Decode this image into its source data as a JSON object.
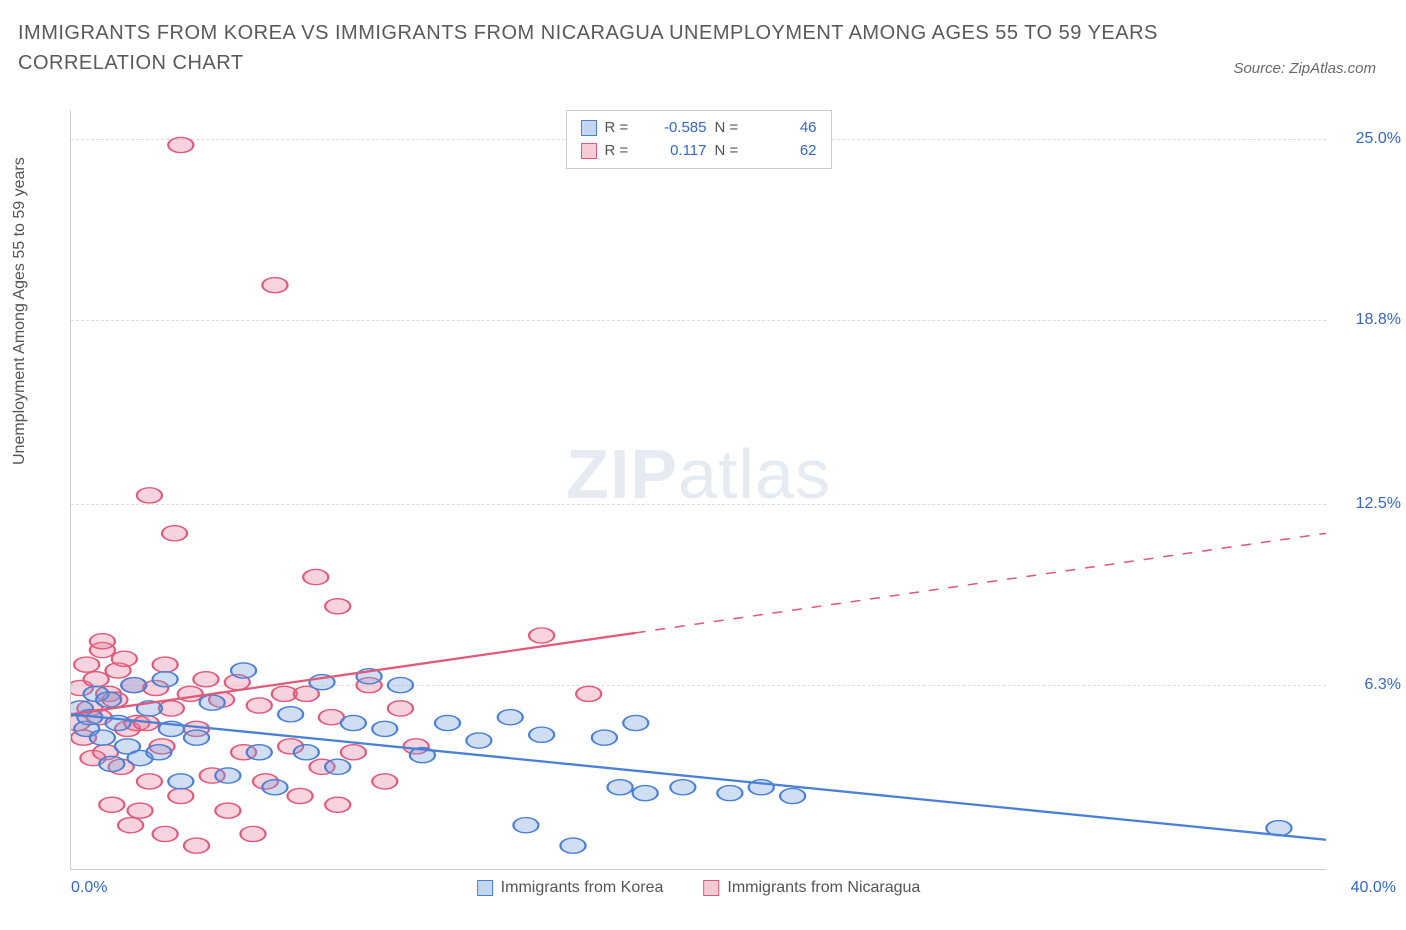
{
  "title": "IMMIGRANTS FROM KOREA VS IMMIGRANTS FROM NICARAGUA UNEMPLOYMENT AMONG AGES 55 TO 59 YEARS CORRELATION CHART",
  "source": "Source: ZipAtlas.com",
  "watermark_bold": "ZIP",
  "watermark_light": "atlas",
  "ylabel": "Unemployment Among Ages 55 to 59 years",
  "xlim": [
    0,
    40
  ],
  "ylim": [
    0,
    26
  ],
  "xtick_left": "0.0%",
  "xtick_right": "40.0%",
  "yticks": [
    {
      "v": 6.3,
      "label": "6.3%"
    },
    {
      "v": 12.5,
      "label": "12.5%"
    },
    {
      "v": 18.8,
      "label": "18.8%"
    },
    {
      "v": 25.0,
      "label": "25.0%"
    }
  ],
  "grid_color": "#dddddd",
  "series": {
    "korea": {
      "label": "Immigrants from Korea",
      "color_stroke": "#4a80d6",
      "color_fill": "rgba(120,160,220,0.35)",
      "swatch_fill": "#c4d6f2",
      "swatch_border": "#4a80d6",
      "R": "-0.585",
      "N": "46",
      "trend": {
        "x1": 0,
        "y1": 5.3,
        "x2": 40,
        "y2": 1.0,
        "dash_from_x": 40
      },
      "points": [
        [
          0.3,
          5.5
        ],
        [
          0.5,
          4.8
        ],
        [
          0.6,
          5.2
        ],
        [
          0.8,
          6.0
        ],
        [
          1.0,
          4.5
        ],
        [
          1.2,
          5.8
        ],
        [
          1.3,
          3.6
        ],
        [
          1.5,
          5.0
        ],
        [
          1.8,
          4.2
        ],
        [
          2.0,
          6.3
        ],
        [
          2.2,
          3.8
        ],
        [
          2.5,
          5.5
        ],
        [
          2.8,
          4.0
        ],
        [
          3.0,
          6.5
        ],
        [
          3.2,
          4.8
        ],
        [
          3.5,
          3.0
        ],
        [
          4.0,
          4.5
        ],
        [
          4.5,
          5.7
        ],
        [
          5.0,
          3.2
        ],
        [
          5.5,
          6.8
        ],
        [
          6.0,
          4.0
        ],
        [
          6.5,
          2.8
        ],
        [
          7.0,
          5.3
        ],
        [
          7.5,
          4.0
        ],
        [
          8.0,
          6.4
        ],
        [
          8.5,
          3.5
        ],
        [
          9.0,
          5.0
        ],
        [
          9.5,
          6.6
        ],
        [
          10.0,
          4.8
        ],
        [
          10.5,
          6.3
        ],
        [
          11.2,
          3.9
        ],
        [
          12.0,
          5.0
        ],
        [
          13.0,
          4.4
        ],
        [
          14.0,
          5.2
        ],
        [
          14.5,
          1.5
        ],
        [
          15.0,
          4.6
        ],
        [
          16.0,
          0.8
        ],
        [
          17.0,
          4.5
        ],
        [
          17.5,
          2.8
        ],
        [
          18.0,
          5.0
        ],
        [
          18.3,
          2.6
        ],
        [
          19.5,
          2.8
        ],
        [
          21.0,
          2.6
        ],
        [
          22.0,
          2.8
        ],
        [
          23.0,
          2.5
        ],
        [
          38.5,
          1.4
        ]
      ]
    },
    "nicaragua": {
      "label": "Immigrants from Nicaragua",
      "color_stroke": "#e05a7a",
      "color_fill": "rgba(230,130,160,0.35)",
      "swatch_fill": "#f5cbd7",
      "swatch_border": "#e05a7a",
      "R": "0.117",
      "N": "62",
      "trend": {
        "x1": 0,
        "y1": 5.3,
        "x2": 40,
        "y2": 11.5,
        "dash_from_x": 18
      },
      "points": [
        [
          0.2,
          5.0
        ],
        [
          0.3,
          6.2
        ],
        [
          0.4,
          4.5
        ],
        [
          0.5,
          7.0
        ],
        [
          0.6,
          5.5
        ],
        [
          0.7,
          3.8
        ],
        [
          0.8,
          6.5
        ],
        [
          0.9,
          5.2
        ],
        [
          1.0,
          7.5
        ],
        [
          1.0,
          7.8
        ],
        [
          1.1,
          4.0
        ],
        [
          1.2,
          6.0
        ],
        [
          1.3,
          2.2
        ],
        [
          1.4,
          5.8
        ],
        [
          1.5,
          6.8
        ],
        [
          1.6,
          3.5
        ],
        [
          1.7,
          7.2
        ],
        [
          1.8,
          4.8
        ],
        [
          1.9,
          1.5
        ],
        [
          2.0,
          6.3
        ],
        [
          2.1,
          5.0
        ],
        [
          2.2,
          2.0
        ],
        [
          2.4,
          5.0
        ],
        [
          2.5,
          3.0
        ],
        [
          2.5,
          12.8
        ],
        [
          2.7,
          6.2
        ],
        [
          2.9,
          4.2
        ],
        [
          3.0,
          1.2
        ],
        [
          3.0,
          7.0
        ],
        [
          3.2,
          5.5
        ],
        [
          3.3,
          11.5
        ],
        [
          3.5,
          2.5
        ],
        [
          3.5,
          24.8
        ],
        [
          3.8,
          6.0
        ],
        [
          4.0,
          0.8
        ],
        [
          4.0,
          4.8
        ],
        [
          4.3,
          6.5
        ],
        [
          4.5,
          3.2
        ],
        [
          4.8,
          5.8
        ],
        [
          5.0,
          2.0
        ],
        [
          5.3,
          6.4
        ],
        [
          5.5,
          4.0
        ],
        [
          5.8,
          1.2
        ],
        [
          6.0,
          5.6
        ],
        [
          6.2,
          3.0
        ],
        [
          6.5,
          20.0
        ],
        [
          6.8,
          6.0
        ],
        [
          7.0,
          4.2
        ],
        [
          7.3,
          2.5
        ],
        [
          7.5,
          6.0
        ],
        [
          7.8,
          10.0
        ],
        [
          8.0,
          3.5
        ],
        [
          8.3,
          5.2
        ],
        [
          8.5,
          9.0
        ],
        [
          8.5,
          2.2
        ],
        [
          9.0,
          4.0
        ],
        [
          9.5,
          6.3
        ],
        [
          10.0,
          3.0
        ],
        [
          10.5,
          5.5
        ],
        [
          11.0,
          4.2
        ],
        [
          15.0,
          8.0
        ],
        [
          16.5,
          6.0
        ]
      ]
    }
  },
  "legend_top_labels": {
    "R": "R =",
    "N": "N ="
  }
}
